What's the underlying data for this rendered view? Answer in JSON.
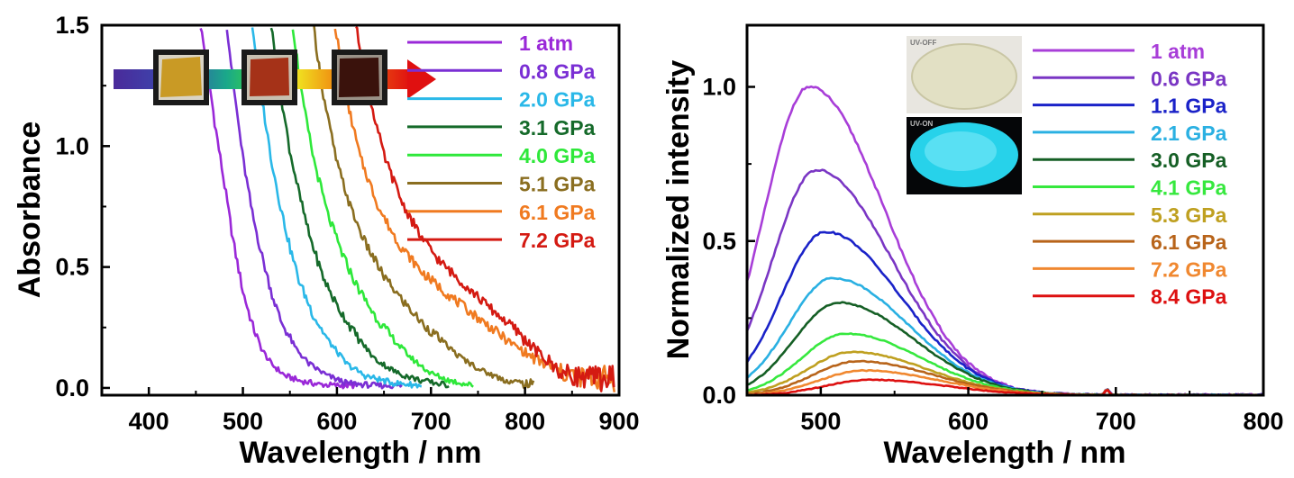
{
  "chart_data": [
    {
      "type": "line",
      "xlabel": "Wavelength / nm",
      "ylabel": "Absorbance",
      "xlim": [
        350,
        900
      ],
      "ylim": [
        -0.03,
        1.5
      ],
      "xticks": [
        "400",
        "500",
        "600",
        "700",
        "800",
        "900"
      ],
      "yticks": [
        "0.0",
        "0.5",
        "1.0",
        "1.5"
      ],
      "legend_position": "top-right",
      "inset": "sample-photos-with-arrow",
      "series": [
        {
          "name": "1 atm",
          "color": "#9a28d8",
          "x": [
            455,
            463,
            470,
            480,
            490,
            500,
            510,
            520,
            530,
            545,
            560,
            580,
            600,
            620
          ],
          "y": [
            1.5,
            1.3,
            1.1,
            0.85,
            0.6,
            0.4,
            0.26,
            0.16,
            0.1,
            0.05,
            0.03,
            0.015,
            0.01,
            0.01
          ]
        },
        {
          "name": "0.8 GPa",
          "color": "#7a2fd4",
          "x": [
            483,
            490,
            500,
            510,
            520,
            530,
            540,
            555,
            570,
            590,
            610,
            640,
            670
          ],
          "y": [
            1.5,
            1.25,
            0.95,
            0.72,
            0.55,
            0.4,
            0.28,
            0.17,
            0.1,
            0.05,
            0.02,
            0.01,
            0.01
          ]
        },
        {
          "name": "2.0 GPa",
          "color": "#2ab8e8",
          "x": [
            510,
            520,
            530,
            540,
            550,
            560,
            575,
            590,
            610,
            630,
            660,
            690
          ],
          "y": [
            1.5,
            1.2,
            0.95,
            0.75,
            0.58,
            0.44,
            0.3,
            0.2,
            0.1,
            0.05,
            0.02,
            0.01
          ]
        },
        {
          "name": "3.1 GPa",
          "color": "#156a2a",
          "x": [
            530,
            540,
            550,
            560,
            570,
            585,
            600,
            620,
            640,
            665,
            690,
            720
          ],
          "y": [
            1.5,
            1.22,
            0.98,
            0.8,
            0.64,
            0.46,
            0.34,
            0.22,
            0.12,
            0.06,
            0.03,
            0.01
          ]
        },
        {
          "name": "4.0 GPa",
          "color": "#2ee83a",
          "x": [
            553,
            563,
            575,
            590,
            605,
            620,
            640,
            660,
            680,
            700,
            720,
            745
          ],
          "y": [
            1.5,
            1.2,
            0.95,
            0.72,
            0.56,
            0.43,
            0.3,
            0.2,
            0.12,
            0.06,
            0.03,
            0.01
          ]
        },
        {
          "name": "5.1 GPa",
          "color": "#8a6e20",
          "x": [
            575,
            585,
            600,
            615,
            630,
            650,
            670,
            690,
            710,
            730,
            755,
            780,
            810
          ],
          "y": [
            1.5,
            1.22,
            0.93,
            0.74,
            0.6,
            0.46,
            0.36,
            0.27,
            0.2,
            0.13,
            0.07,
            0.03,
            0.01
          ]
        },
        {
          "name": "6.1 GPa",
          "color": "#f07a20",
          "x": [
            598,
            610,
            625,
            645,
            665,
            690,
            720,
            750,
            780,
            810,
            840,
            870,
            895
          ],
          "y": [
            1.5,
            1.2,
            0.95,
            0.74,
            0.6,
            0.48,
            0.38,
            0.29,
            0.2,
            0.12,
            0.06,
            0.04,
            0.04
          ]
        },
        {
          "name": "7.2 GPa",
          "color": "#d41a12",
          "x": [
            620,
            635,
            650,
            670,
            690,
            710,
            735,
            760,
            790,
            815,
            840,
            870,
            895
          ],
          "y": [
            1.5,
            1.2,
            0.96,
            0.76,
            0.62,
            0.52,
            0.43,
            0.34,
            0.24,
            0.14,
            0.06,
            0.04,
            0.04
          ]
        }
      ]
    },
    {
      "type": "line",
      "xlabel": "Wavelength / nm",
      "ylabel": "Normalized intensity",
      "xlim": [
        450,
        800
      ],
      "ylim": [
        0,
        1.2
      ],
      "xticks": [
        "500",
        "600",
        "700",
        "800"
      ],
      "yticks": [
        "0.0",
        "0.5",
        "1.0"
      ],
      "legend_position": "top-right",
      "inset_labels": [
        "UV-OFF",
        "UV-ON"
      ],
      "series": [
        {
          "name": "1 atm",
          "color": "#a83ed8",
          "peak_x": 492,
          "peak_y": 1.0
        },
        {
          "name": "0.6 GPa",
          "color": "#7a36c4",
          "peak_x": 497,
          "peak_y": 0.73
        },
        {
          "name": "1.1 GPa",
          "color": "#1a22c8",
          "peak_x": 503,
          "peak_y": 0.53
        },
        {
          "name": "2.1 GPa",
          "color": "#2ab0e2",
          "peak_x": 508,
          "peak_y": 0.38
        },
        {
          "name": "3.0 GPa",
          "color": "#155f25",
          "peak_x": 512,
          "peak_y": 0.3
        },
        {
          "name": "4.1 GPa",
          "color": "#36e83e",
          "peak_x": 517,
          "peak_y": 0.2
        },
        {
          "name": "5.3 GPa",
          "color": "#bfa020",
          "peak_x": 521,
          "peak_y": 0.14
        },
        {
          "name": "6.1 GPa",
          "color": "#b8641a",
          "peak_x": 525,
          "peak_y": 0.11
        },
        {
          "name": "7.2 GPa",
          "color": "#f08830",
          "peak_x": 529,
          "peak_y": 0.08
        },
        {
          "name": "8.4 GPa",
          "color": "#dd1010",
          "peak_x": 533,
          "peak_y": 0.05
        }
      ]
    }
  ]
}
